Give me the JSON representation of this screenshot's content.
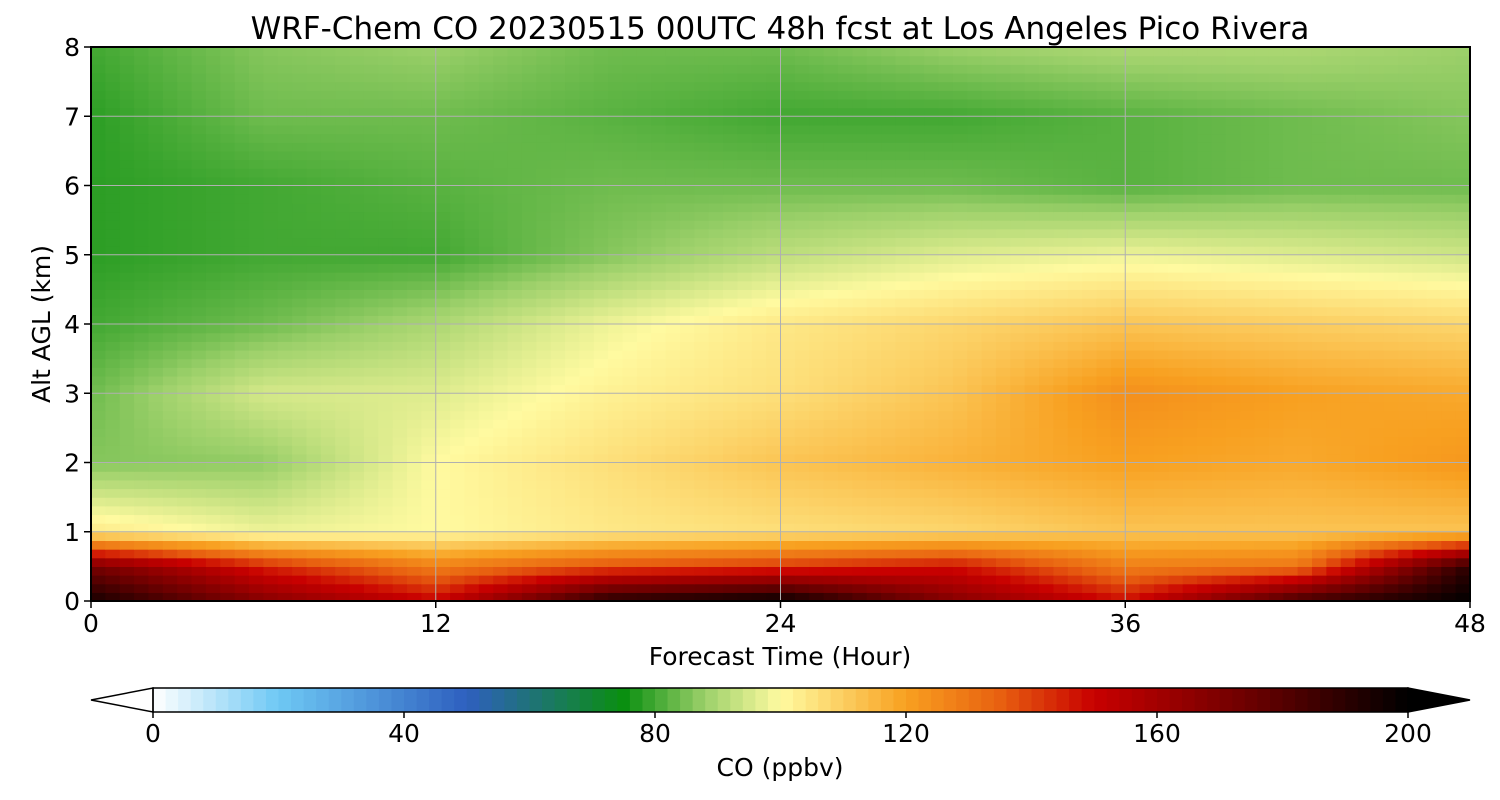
{
  "chart_data": {
    "type": "heatmap",
    "title": "WRF-Chem CO  20230515 00UTC 48h fcst at Los Angeles Pico Rivera",
    "xlabel": "Forecast Time (Hour)",
    "ylabel": "Alt AGL (km)",
    "xlim": [
      0,
      48
    ],
    "ylim": [
      0,
      8
    ],
    "x_ticks": [
      0,
      12,
      24,
      36,
      48
    ],
    "y_ticks": [
      0,
      1,
      2,
      3,
      4,
      5,
      6,
      7,
      8
    ],
    "grid": true,
    "x": [
      0,
      6,
      12,
      18,
      24,
      30,
      36,
      42,
      48
    ],
    "y": [
      0,
      0.5,
      1,
      2,
      3,
      4,
      5,
      6,
      7,
      8
    ],
    "z": [
      [
        195,
        168,
        150,
        192,
        200,
        168,
        148,
        185,
        200
      ],
      [
        172,
        145,
        128,
        138,
        142,
        148,
        128,
        130,
        190
      ],
      [
        104,
        98,
        100,
        104,
        106,
        108,
        112,
        112,
        112
      ],
      [
        86,
        87,
        100,
        106,
        112,
        116,
        120,
        118,
        122
      ],
      [
        84,
        95,
        96,
        102,
        106,
        112,
        124,
        120,
        118
      ],
      [
        80,
        84,
        90,
        98,
        104,
        108,
        112,
        110,
        108
      ],
      [
        78,
        80,
        80,
        86,
        92,
        96,
        98,
        96,
        94
      ],
      [
        78,
        80,
        82,
        84,
        84,
        84,
        82,
        84,
        84
      ],
      [
        78,
        84,
        84,
        82,
        80,
        80,
        82,
        84,
        86
      ],
      [
        80,
        86,
        88,
        84,
        84,
        88,
        90,
        90,
        88
      ]
    ],
    "colorbar": {
      "label": "CO  (ppbv)",
      "min": 0,
      "max": 200,
      "ticks": [
        0,
        40,
        80,
        120,
        160,
        200
      ],
      "extend": "both",
      "position": "bottom",
      "colors": [
        {
          "v": 0,
          "c": "#ffffff"
        },
        {
          "v": 20,
          "c": "#6ec8f4"
        },
        {
          "v": 50,
          "c": "#2e5fbf"
        },
        {
          "v": 75,
          "c": "#0a8f10"
        },
        {
          "v": 88,
          "c": "#9cd06a"
        },
        {
          "v": 100,
          "c": "#fffaa0"
        },
        {
          "v": 120,
          "c": "#f8a020"
        },
        {
          "v": 135,
          "c": "#e86010"
        },
        {
          "v": 150,
          "c": "#c80000"
        },
        {
          "v": 175,
          "c": "#6a0000"
        },
        {
          "v": 200,
          "c": "#000000"
        }
      ]
    }
  }
}
